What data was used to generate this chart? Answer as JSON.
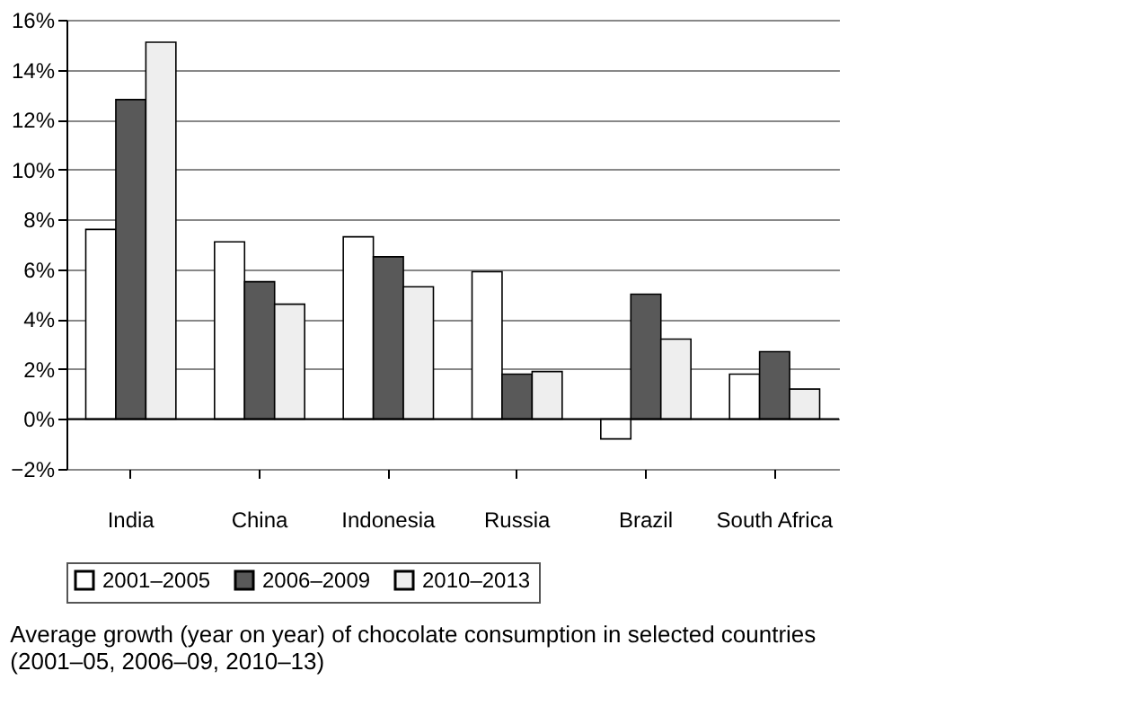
{
  "chart_data": {
    "type": "bar",
    "categories": [
      "India",
      "China",
      "Indonesia",
      "Russia",
      "Brazil",
      "South Africa"
    ],
    "series": [
      {
        "name": "2001–2005",
        "color": "#ffffff",
        "values": [
          7.6,
          7.1,
          7.3,
          5.9,
          -0.8,
          1.8
        ]
      },
      {
        "name": "2006–2009",
        "color": "#595959",
        "values": [
          12.8,
          5.5,
          6.5,
          1.8,
          5.0,
          2.7
        ]
      },
      {
        "name": "2010–2013",
        "color": "#eeeeee",
        "values": [
          15.1,
          4.6,
          5.3,
          1.9,
          3.2,
          1.2
        ]
      }
    ],
    "ylim": [
      -2,
      16
    ],
    "yticks": [
      {
        "value": -2,
        "label": "−2%"
      },
      {
        "value": 0,
        "label": "0%"
      },
      {
        "value": 2,
        "label": "2%"
      },
      {
        "value": 4,
        "label": "4%"
      },
      {
        "value": 6,
        "label": "6%"
      },
      {
        "value": 8,
        "label": "8%"
      },
      {
        "value": 10,
        "label": "10%"
      },
      {
        "value": 12,
        "label": "12%"
      },
      {
        "value": 14,
        "label": "14%"
      },
      {
        "value": 16,
        "label": "16%"
      }
    ],
    "grid": "y",
    "legend": "bottom",
    "annotations": [
      "Average growth (year on year) of chocolate consumption in selected countries (2001–05, 2006–09, 2010–13)"
    ]
  }
}
